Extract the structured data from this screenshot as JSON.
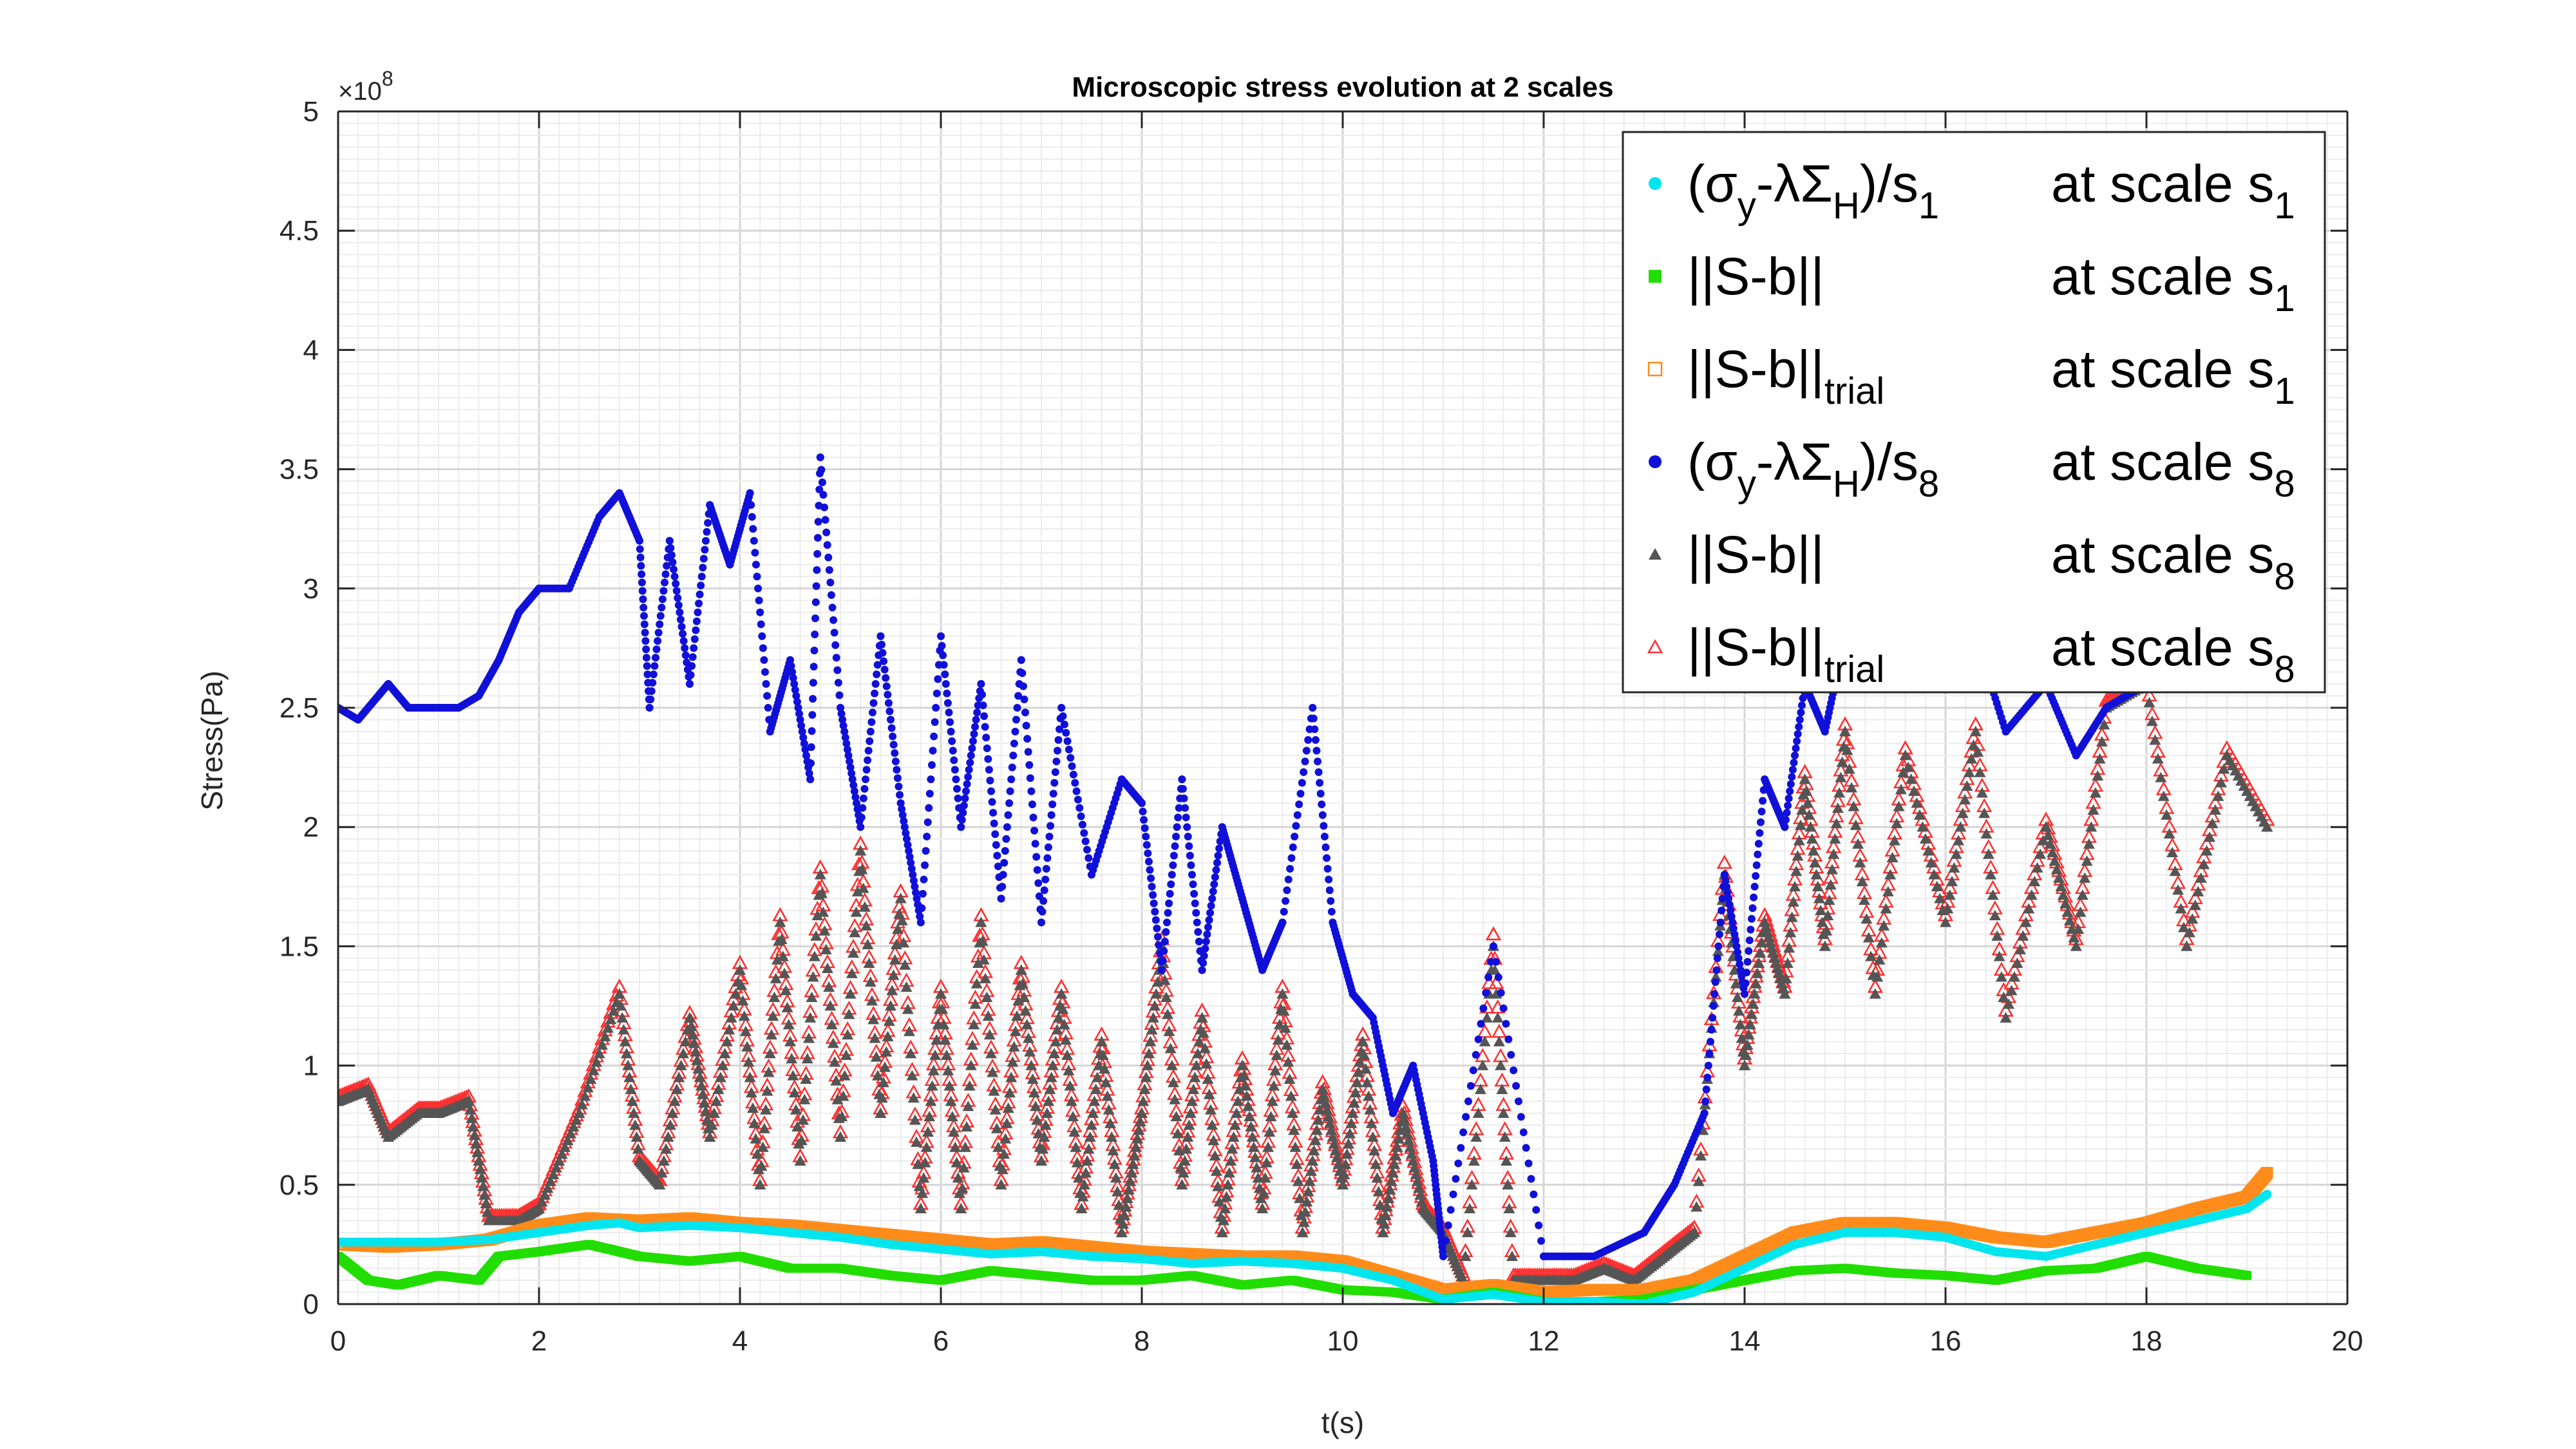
{
  "chart_data": {
    "type": "scatter",
    "title": "Microscopic stress evolution at 2 scales",
    "xlabel": "t(s)",
    "ylabel": "Stress(Pa)",
    "y_exponent_label": "×10",
    "y_exponent_power": "8",
    "xlim": [
      0,
      20
    ],
    "ylim": [
      0,
      5
    ],
    "xticks": [
      "0",
      "2",
      "4",
      "6",
      "8",
      "10",
      "12",
      "14",
      "16",
      "18",
      "20"
    ],
    "yticks": [
      "0",
      "0.5",
      "1",
      "1.5",
      "2",
      "2.5",
      "3",
      "3.5",
      "4",
      "4.5",
      "5"
    ],
    "grid": "minor",
    "legend_position": "top-right",
    "series": [
      {
        "legend_main": "(σy-λΣH)/s1",
        "legend_parts": [
          "(σ",
          "y",
          "-λΣ",
          "H",
          ")/s",
          "1"
        ],
        "legend_scale": [
          "at scale s",
          "1"
        ],
        "color": "#00e5ee",
        "marker": "dot",
        "x": [
          0,
          0.5,
          1,
          1.5,
          2,
          2.5,
          2.8,
          3,
          3.5,
          4,
          4.5,
          5,
          5.5,
          6,
          6.5,
          7,
          7.5,
          8,
          8.5,
          9,
          9.5,
          10,
          10.5,
          11,
          11.5,
          12,
          12.5,
          13,
          13.5,
          14,
          14.5,
          15,
          15.5,
          16,
          16.5,
          17,
          17.5,
          18,
          18.5,
          19,
          19.2
        ],
        "y": [
          0.26,
          0.26,
          0.26,
          0.27,
          0.3,
          0.33,
          0.34,
          0.32,
          0.33,
          0.32,
          0.3,
          0.28,
          0.25,
          0.23,
          0.21,
          0.22,
          0.2,
          0.19,
          0.17,
          0.18,
          0.17,
          0.15,
          0.1,
          0.02,
          0.04,
          0.01,
          0.01,
          0.0,
          0.05,
          0.15,
          0.25,
          0.3,
          0.3,
          0.28,
          0.22,
          0.2,
          0.25,
          0.3,
          0.35,
          0.4,
          0.46
        ]
      },
      {
        "legend_main": "||S-b||",
        "legend_parts": [
          "||S-b||"
        ],
        "legend_scale": [
          "at scale s",
          "1"
        ],
        "color": "#22dd00",
        "marker": "square-filled",
        "x": [
          0,
          0.3,
          0.6,
          1,
          1.4,
          1.6,
          2,
          2.5,
          3,
          3.5,
          4,
          4.5,
          5,
          5.5,
          6,
          6.5,
          7,
          7.5,
          8,
          8.5,
          9,
          9.5,
          10,
          10.5,
          11,
          11.5,
          12,
          12.5,
          13,
          13.5,
          14,
          14.5,
          15,
          15.5,
          16,
          16.5,
          17,
          17.5,
          18,
          18.5,
          19
        ],
        "y": [
          0.2,
          0.1,
          0.08,
          0.12,
          0.1,
          0.2,
          0.22,
          0.25,
          0.2,
          0.18,
          0.2,
          0.15,
          0.15,
          0.12,
          0.1,
          0.14,
          0.12,
          0.1,
          0.1,
          0.12,
          0.08,
          0.1,
          0.06,
          0.05,
          0.02,
          0.05,
          0.01,
          0.01,
          0.02,
          0.06,
          0.1,
          0.14,
          0.15,
          0.13,
          0.12,
          0.1,
          0.14,
          0.15,
          0.2,
          0.15,
          0.12
        ]
      },
      {
        "legend_main": "||S-b||trial",
        "legend_parts": [
          "||S-b||",
          "trial"
        ],
        "legend_scale": [
          "at scale s",
          "1"
        ],
        "color": "#ff8c1a",
        "marker": "square-open",
        "x": [
          0,
          0.5,
          1,
          1.5,
          2,
          2.5,
          3,
          3.5,
          4,
          4.5,
          5,
          5.5,
          6,
          6.5,
          7,
          7.5,
          8,
          8.5,
          9,
          9.5,
          10,
          10.5,
          11,
          11.5,
          12,
          12.5,
          13,
          13.5,
          14,
          14.5,
          15,
          15.5,
          16,
          16.5,
          17,
          17.5,
          18,
          18.5,
          19,
          19.2
        ],
        "y": [
          0.25,
          0.24,
          0.25,
          0.27,
          0.33,
          0.36,
          0.35,
          0.36,
          0.34,
          0.33,
          0.31,
          0.29,
          0.27,
          0.25,
          0.26,
          0.24,
          0.22,
          0.21,
          0.2,
          0.2,
          0.18,
          0.12,
          0.06,
          0.08,
          0.05,
          0.06,
          0.06,
          0.1,
          0.2,
          0.3,
          0.34,
          0.34,
          0.32,
          0.28,
          0.26,
          0.3,
          0.34,
          0.4,
          0.45,
          0.55
        ]
      },
      {
        "legend_main": "(σy-λΣH)/s8",
        "legend_parts": [
          "(σ",
          "y",
          "-λΣ",
          "H",
          ")/s",
          "8"
        ],
        "legend_scale": [
          "at scale s",
          "8"
        ],
        "color": "#1010d8",
        "marker": "dot",
        "x": [
          0,
          0.2,
          0.4,
          0.5,
          0.7,
          1,
          1.2,
          1.4,
          1.6,
          1.8,
          2,
          2.3,
          2.6,
          2.8,
          3,
          3.1,
          3.3,
          3.5,
          3.7,
          3.9,
          4.1,
          4.3,
          4.5,
          4.7,
          4.8,
          5,
          5.2,
          5.4,
          5.6,
          5.8,
          6,
          6.2,
          6.4,
          6.6,
          6.8,
          7,
          7.2,
          7.5,
          7.8,
          8,
          8.2,
          8.4,
          8.6,
          8.8,
          9,
          9.2,
          9.4,
          9.7,
          9.9,
          10.1,
          10.3,
          10.5,
          10.7,
          10.9,
          11.0,
          11.5,
          12,
          12.5,
          13,
          13.3,
          13.6,
          13.8,
          14,
          14.2,
          14.4,
          14.6,
          14.8,
          15,
          15.3,
          15.6,
          16,
          16.3,
          16.6,
          17,
          17.3,
          17.6,
          18
        ],
        "y": [
          2.5,
          2.45,
          2.55,
          2.6,
          2.5,
          2.5,
          2.5,
          2.55,
          2.7,
          2.9,
          3.0,
          3.0,
          3.3,
          3.4,
          3.2,
          2.5,
          3.2,
          2.6,
          3.35,
          3.1,
          3.4,
          2.4,
          2.7,
          2.2,
          3.55,
          2.5,
          2.0,
          2.8,
          2.1,
          1.6,
          2.8,
          2.0,
          2.6,
          1.7,
          2.7,
          1.6,
          2.5,
          1.8,
          2.2,
          2.1,
          1.4,
          2.2,
          1.4,
          2.0,
          1.7,
          1.4,
          1.6,
          2.5,
          1.6,
          1.3,
          1.2,
          0.8,
          1.0,
          0.6,
          0.2,
          1.5,
          0.2,
          0.2,
          0.3,
          0.5,
          0.8,
          1.8,
          1.3,
          2.2,
          2.0,
          2.6,
          2.4,
          2.8,
          2.6,
          2.9,
          2.6,
          2.8,
          2.4,
          2.6,
          2.3,
          2.5,
          2.6
        ]
      },
      {
        "legend_main": "||S-b||",
        "legend_parts": [
          "||S-b||"
        ],
        "legend_scale": [
          "at scale s",
          "8"
        ],
        "color": "#555555",
        "marker": "triangle-filled",
        "x": [
          0,
          0.3,
          0.5,
          0.8,
          1,
          1.3,
          1.5,
          1.8,
          2,
          2.4,
          2.8,
          3,
          3.2,
          3.5,
          3.7,
          4,
          4.2,
          4.4,
          4.6,
          4.8,
          5,
          5.2,
          5.4,
          5.6,
          5.8,
          6,
          6.2,
          6.4,
          6.6,
          6.8,
          7,
          7.2,
          7.4,
          7.6,
          7.8,
          8,
          8.2,
          8.4,
          8.6,
          8.8,
          9,
          9.2,
          9.4,
          9.6,
          9.8,
          10,
          10.2,
          10.4,
          10.6,
          10.8,
          11,
          11.2,
          11.5,
          11.7,
          12,
          12.3,
          12.6,
          12.9,
          13.2,
          13.5,
          13.8,
          14,
          14.2,
          14.4,
          14.6,
          14.8,
          15,
          15.3,
          15.6,
          16,
          16.3,
          16.6,
          17,
          17.3,
          17.6,
          18,
          18.4,
          18.8,
          19.2
        ],
        "y": [
          0.85,
          0.9,
          0.7,
          0.8,
          0.8,
          0.85,
          0.35,
          0.35,
          0.4,
          0.8,
          1.3,
          0.6,
          0.5,
          1.2,
          0.7,
          1.4,
          0.5,
          1.6,
          0.6,
          1.8,
          0.7,
          1.9,
          0.8,
          1.7,
          0.4,
          1.3,
          0.4,
          1.6,
          0.5,
          1.4,
          0.6,
          1.3,
          0.4,
          1.1,
          0.3,
          0.8,
          1.5,
          0.5,
          1.2,
          0.3,
          1.0,
          0.4,
          1.3,
          0.3,
          0.9,
          0.5,
          1.1,
          0.3,
          0.8,
          0.4,
          0.3,
          0.1,
          1.5,
          0.1,
          0.1,
          0.1,
          0.15,
          0.1,
          0.2,
          0.3,
          1.8,
          1.0,
          1.6,
          1.3,
          2.2,
          1.5,
          2.4,
          1.3,
          2.3,
          1.6,
          2.4,
          1.2,
          2.0,
          1.5,
          2.5,
          2.6,
          1.5,
          2.3,
          2.0
        ]
      },
      {
        "legend_main": "||S-b||trial",
        "legend_parts": [
          "||S-b||",
          "trial"
        ],
        "legend_scale": [
          "at scale s",
          "8"
        ],
        "color": "#ff3030",
        "marker": "triangle-open",
        "x": [
          0,
          0.3,
          0.5,
          0.8,
          1,
          1.3,
          1.5,
          1.8,
          2,
          2.4,
          2.8,
          3,
          3.2,
          3.5,
          3.7,
          4,
          4.2,
          4.4,
          4.6,
          4.8,
          5,
          5.2,
          5.4,
          5.6,
          5.8,
          6,
          6.2,
          6.4,
          6.6,
          6.8,
          7,
          7.2,
          7.4,
          7.6,
          7.8,
          8,
          8.2,
          8.4,
          8.6,
          8.8,
          9,
          9.2,
          9.4,
          9.6,
          9.8,
          10,
          10.2,
          10.4,
          10.6,
          10.8,
          11,
          11.2,
          11.5,
          11.7,
          12,
          12.3,
          12.6,
          12.9,
          13.2,
          13.5,
          13.8,
          14,
          14.2,
          14.4,
          14.6,
          14.8,
          15,
          15.3,
          15.6,
          16,
          16.3,
          16.6,
          17,
          17.3,
          17.6,
          18,
          18.4,
          18.8,
          19.2
        ],
        "y": [
          0.87,
          0.92,
          0.72,
          0.82,
          0.82,
          0.87,
          0.37,
          0.37,
          0.42,
          0.82,
          1.33,
          0.62,
          0.52,
          1.22,
          0.72,
          1.43,
          0.52,
          1.63,
          0.62,
          1.83,
          0.72,
          1.93,
          0.82,
          1.73,
          0.42,
          1.33,
          0.42,
          1.63,
          0.52,
          1.43,
          0.62,
          1.33,
          0.42,
          1.13,
          0.32,
          0.82,
          1.53,
          0.52,
          1.23,
          0.32,
          1.03,
          0.42,
          1.33,
          0.32,
          0.93,
          0.52,
          1.13,
          0.32,
          0.83,
          0.42,
          0.32,
          0.12,
          1.55,
          0.12,
          0.12,
          0.12,
          0.17,
          0.12,
          0.22,
          0.32,
          1.85,
          1.03,
          1.63,
          1.33,
          2.23,
          1.53,
          2.43,
          1.33,
          2.33,
          1.63,
          2.43,
          1.23,
          2.03,
          1.53,
          2.53,
          2.63,
          1.53,
          2.33,
          2.03
        ]
      }
    ]
  }
}
